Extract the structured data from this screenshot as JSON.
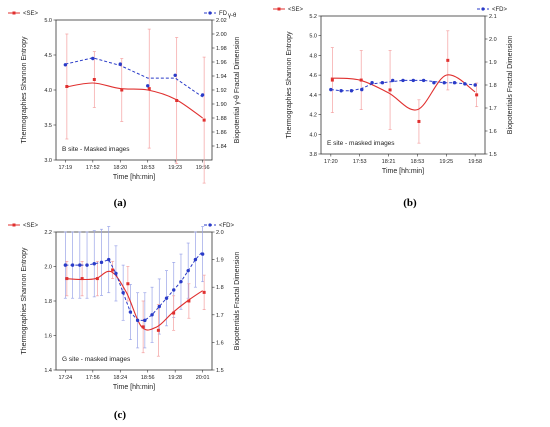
{
  "colors": {
    "se": "#e0302f",
    "fd": "#2a3bc8",
    "se_err": "#f4a0a0",
    "fd_err": "#9aa4e8",
    "axis": "#333333"
  },
  "chart_data": [
    {
      "type": "line",
      "panel_label": "(a)",
      "annotation": "B site - Masked images",
      "xlabel": "Time [hh:min]",
      "ylabel_left": "Thermographies Shannon Entropy",
      "ylabel_right": "Biopotential γ-θ Fractal Dimension",
      "legend": {
        "se": "<SE>",
        "fd_main": "FD",
        "fd_sub": "γ-θ"
      },
      "x_ticks": [
        "17:19",
        "17:52",
        "18:20",
        "18:53",
        "19:23",
        "19:56"
      ],
      "yleft_range": [
        3.0,
        5.0
      ],
      "yleft_ticks": [
        "3.0",
        "3.5",
        "4.0",
        "4.5",
        "5.0"
      ],
      "yright_range": [
        1.82,
        2.02
      ],
      "yright_ticks": [
        "1.84",
        "1.86",
        "1.88",
        "1.90",
        "1.92",
        "1.94",
        "1.96",
        "1.98",
        "2.00",
        "2.02"
      ],
      "se": {
        "name": "<SE>",
        "values": [
          4.05,
          4.15,
          4.0,
          4.02,
          3.85,
          3.57
        ],
        "err": [
          0.75,
          0.4,
          0.45,
          0.85,
          0.9,
          0.9
        ]
      },
      "se_fit": [
        4.04,
        4.1,
        4.02,
        4.0,
        3.87,
        3.6
      ],
      "fd": {
        "name": "FDγ-θ",
        "values": [
          1.956,
          1.965,
          1.957,
          1.926,
          1.941,
          1.913
        ]
      },
      "fd_line": [
        1.957,
        1.966,
        1.955,
        1.937,
        1.937,
        1.91
      ]
    },
    {
      "type": "line",
      "panel_label": "(b)",
      "annotation": "E site - masked images",
      "xlabel": "Time [hh:min]",
      "ylabel_left": "Thermographies Shannon Entropy",
      "ylabel_right": "Biopotentials Fractal Dimension",
      "legend": {
        "se": "<SE>",
        "fd_main": "<FD>",
        "fd_sub": ""
      },
      "x_ticks": [
        "17:20",
        "17:53",
        "18:21",
        "18:53",
        "19:25",
        "19:58"
      ],
      "yleft_range": [
        3.8,
        5.2
      ],
      "yleft_ticks": [
        "3.8",
        "4.0",
        "4.2",
        "4.4",
        "4.6",
        "4.8",
        "5.0",
        "5.2"
      ],
      "yright_range": [
        1.5,
        2.1
      ],
      "yright_ticks": [
        "1.5",
        "1.6",
        "1.7",
        "1.8",
        "1.9",
        "2.0",
        "2.1"
      ],
      "se": {
        "name": "<SE>",
        "values": [
          4.55,
          4.55,
          4.45,
          4.13,
          4.75,
          4.4
        ],
        "err": [
          0.33,
          0.3,
          0.4,
          0.22,
          0.3,
          0.12
        ]
      },
      "se_fit": [
        4.57,
        4.55,
        4.42,
        4.25,
        4.6,
        4.43
      ],
      "fd": {
        "name": "<FD>",
        "values": [
          1.78,
          1.775,
          1.775,
          1.78,
          1.81,
          1.81,
          1.82,
          1.82,
          1.82,
          1.82,
          1.81,
          1.81,
          1.81,
          1.805,
          1.8
        ]
      },
      "fd_line": [
        1.78,
        1.775,
        1.775,
        1.785,
        1.805,
        1.81,
        1.815,
        1.82,
        1.82,
        1.82,
        1.815,
        1.81,
        1.81,
        1.805,
        1.8
      ]
    },
    {
      "type": "line",
      "panel_label": "(c)",
      "annotation": "G site - masked images",
      "xlabel": "Time [hh:min]",
      "ylabel_left": "Thermographies Shannon Entropy",
      "ylabel_right": "Biopotentials Fractal Dimension",
      "legend": {
        "se": "<SE>",
        "fd_main": "<FD>",
        "fd_sub": ""
      },
      "x_ticks": [
        "17:24",
        "17:56",
        "18:24",
        "18:56",
        "19:28",
        "20:01"
      ],
      "yleft_range": [
        1.4,
        2.2
      ],
      "yleft_ticks": [
        "1.4",
        "1.6",
        "1.8",
        "2.0",
        "2.2"
      ],
      "yright_range": [
        1.5,
        2.0
      ],
      "yright_ticks": [
        "1.5",
        "1.6",
        "1.7",
        "1.8",
        "1.9",
        "2.0"
      ],
      "se": {
        "name": "<SE>",
        "values": [
          1.93,
          1.93,
          1.93,
          1.98,
          1.9,
          1.65,
          1.63,
          1.73,
          1.8,
          1.85
        ],
        "err": [
          0.1,
          0.1,
          0.1,
          0.05,
          0.1,
          0.15,
          0.15,
          0.1,
          0.1,
          0.1
        ]
      },
      "se_fit": [
        1.93,
        1.925,
        1.93,
        1.97,
        1.85,
        1.65,
        1.65,
        1.73,
        1.8,
        1.86
      ],
      "fd": {
        "name": "<FD>",
        "values": [
          1.88,
          1.88,
          1.88,
          1.88,
          1.885,
          1.89,
          1.9,
          1.85,
          1.78,
          1.71,
          1.68,
          1.68,
          1.7,
          1.73,
          1.76,
          1.79,
          1.82,
          1.86,
          1.9,
          1.92
        ]
      },
      "fd_err": [
        0.12,
        0.12,
        0.12,
        0.12,
        0.12,
        0.12,
        0.12,
        0.1,
        0.1,
        0.1,
        0.1,
        0.1,
        0.1,
        0.1,
        0.1,
        0.1,
        0.1,
        0.1,
        0.1,
        0.1
      ],
      "fd_line": [
        1.88,
        1.88,
        1.88,
        1.88,
        1.885,
        1.89,
        1.9,
        1.85,
        1.78,
        1.71,
        1.68,
        1.68,
        1.7,
        1.73,
        1.76,
        1.79,
        1.82,
        1.86,
        1.9,
        1.93
      ]
    }
  ]
}
